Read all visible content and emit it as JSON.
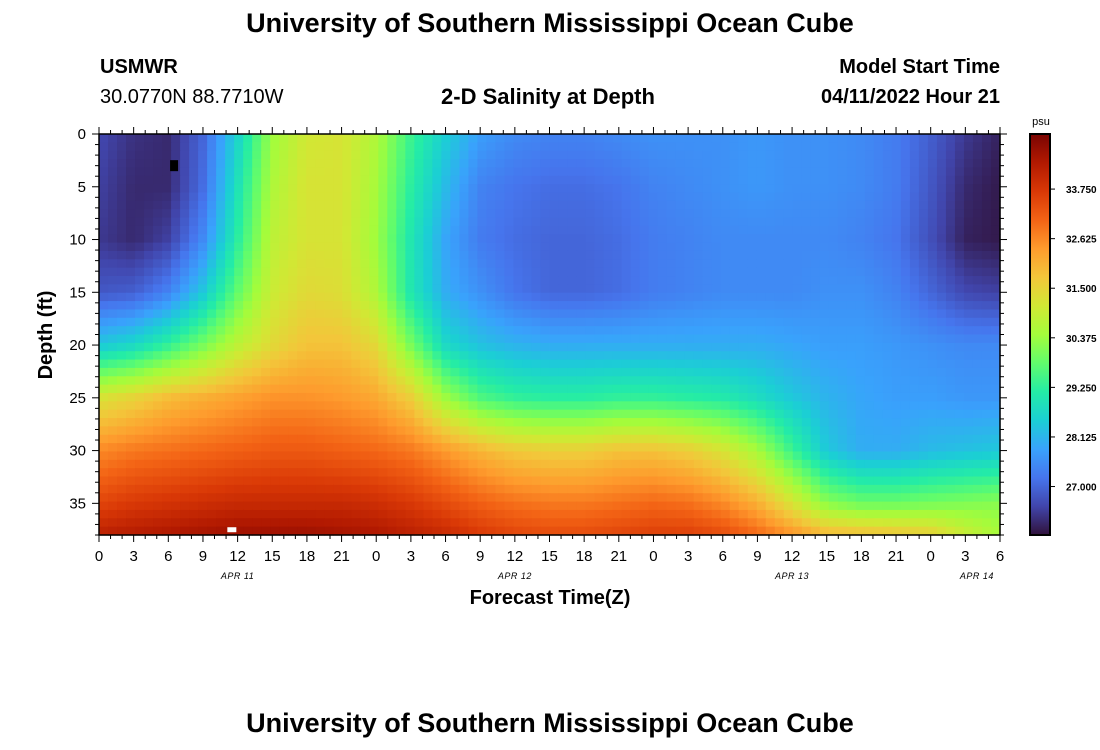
{
  "header": {
    "title": "University of Southern Mississippi Ocean Cube",
    "station": "USMWR",
    "coordinates": "30.0770N  88.7710W",
    "subtitle": "2-D Salinity at Depth",
    "model_start_label": "Model Start Time",
    "model_start_value": "04/11/2022 Hour 21"
  },
  "footer": {
    "title": "University of Southern Mississippi Ocean Cube"
  },
  "chart_data": {
    "type": "heatmap",
    "title": "2-D Salinity at Depth",
    "xlabel": "Forecast Time(Z)",
    "ylabel": "Depth (ft)",
    "x_tick_labels": [
      "0",
      "3",
      "6",
      "9",
      "12",
      "15",
      "18",
      "21",
      "0",
      "3",
      "6",
      "9",
      "12",
      "15",
      "18",
      "21",
      "0",
      "3",
      "6",
      "9",
      "12",
      "15",
      "18",
      "21",
      "0",
      "3",
      "6"
    ],
    "date_labels": [
      "APR 11",
      "APR 12",
      "APR 13",
      "APR 14"
    ],
    "xlim_hours": [
      0,
      78
    ],
    "ylim_ft": [
      0,
      38
    ],
    "y_ticks": [
      0,
      5,
      10,
      15,
      20,
      25,
      30,
      35
    ],
    "y_inverted": true,
    "colorbar": {
      "unit": "psu",
      "range": [
        25.9,
        35.0
      ],
      "tick_labels": [
        "33.750",
        "32.625",
        "31.500",
        "30.375",
        "29.250",
        "28.125",
        "27.000"
      ],
      "tick_values": [
        33.75,
        32.625,
        31.5,
        30.375,
        29.25,
        28.125,
        27.0
      ],
      "colormap": [
        "#30123b",
        "#4145ab",
        "#4675ed",
        "#39a2fc",
        "#1bcfd4",
        "#24eca6",
        "#61fc6c",
        "#a4fc3b",
        "#d1e834",
        "#f3c63a",
        "#fe9b2d",
        "#f36315",
        "#d93806",
        "#b11901",
        "#7a0402"
      ]
    },
    "salinity_psu": {
      "times_h": [
        0,
        3,
        6,
        9,
        12,
        15,
        18,
        21,
        24,
        27,
        30,
        33,
        36,
        39,
        42,
        45,
        48,
        51,
        54,
        57,
        60,
        63,
        66,
        69,
        72,
        75,
        78
      ],
      "depths_ft": [
        0,
        5,
        10,
        15,
        20,
        25,
        30,
        35,
        38
      ],
      "values": [
        [
          26.6,
          26.3,
          26.2,
          27.0,
          28.6,
          30.4,
          31.1,
          31.2,
          30.6,
          29.4,
          28.5,
          27.8,
          27.5,
          27.4,
          27.4,
          27.5,
          27.6,
          27.6,
          27.6,
          27.7,
          27.6,
          27.6,
          27.5,
          27.3,
          26.9,
          26.4,
          26.1
        ],
        [
          26.5,
          26.2,
          26.2,
          27.1,
          28.9,
          30.6,
          31.2,
          31.2,
          30.5,
          29.2,
          28.2,
          27.4,
          27.2,
          27.1,
          27.1,
          27.2,
          27.4,
          27.5,
          27.6,
          27.7,
          27.6,
          27.6,
          27.5,
          27.3,
          26.8,
          26.2,
          26.0
        ],
        [
          26.4,
          26.2,
          26.5,
          27.5,
          29.2,
          30.8,
          31.2,
          31.2,
          30.4,
          29.0,
          27.9,
          27.3,
          27.1,
          27.0,
          27.0,
          27.1,
          27.3,
          27.4,
          27.5,
          27.5,
          27.5,
          27.5,
          27.4,
          27.2,
          26.7,
          26.1,
          26.0
        ],
        [
          26.8,
          26.9,
          27.4,
          28.4,
          29.8,
          31.0,
          31.4,
          31.3,
          30.6,
          29.0,
          28.0,
          27.6,
          27.2,
          27.0,
          27.0,
          27.1,
          27.3,
          27.4,
          27.5,
          27.5,
          27.5,
          27.6,
          27.6,
          27.4,
          27.0,
          26.6,
          26.5
        ],
        [
          28.4,
          28.7,
          29.3,
          30.0,
          30.8,
          31.4,
          31.8,
          31.8,
          31.4,
          30.0,
          28.7,
          28.3,
          28.1,
          28.0,
          28.0,
          28.0,
          28.0,
          28.0,
          28.0,
          28.0,
          27.9,
          27.8,
          27.8,
          27.7,
          27.6,
          27.5,
          27.5
        ],
        [
          31.2,
          31.5,
          31.9,
          32.1,
          32.3,
          32.5,
          32.5,
          32.4,
          32.2,
          31.6,
          30.4,
          29.6,
          29.3,
          29.2,
          29.2,
          29.3,
          29.3,
          29.2,
          29.1,
          28.8,
          28.4,
          28.1,
          27.9,
          27.8,
          27.8,
          27.7,
          27.7
        ],
        [
          32.6,
          32.8,
          32.9,
          33.0,
          33.1,
          33.2,
          33.2,
          33.1,
          33.0,
          32.8,
          32.4,
          32.0,
          31.7,
          31.6,
          31.6,
          31.8,
          31.8,
          31.6,
          31.2,
          30.5,
          29.4,
          28.4,
          28.0,
          28.0,
          28.2,
          28.3,
          28.4
        ],
        [
          33.5,
          33.7,
          33.8,
          33.9,
          34.0,
          34.0,
          34.0,
          34.0,
          33.9,
          33.7,
          33.4,
          33.1,
          32.9,
          32.8,
          32.8,
          32.9,
          33.0,
          32.9,
          32.6,
          32.1,
          31.2,
          30.2,
          29.9,
          29.9,
          30.0,
          30.1,
          30.2
        ],
        [
          34.2,
          34.3,
          34.4,
          34.5,
          34.6,
          34.6,
          34.6,
          34.5,
          34.4,
          34.2,
          34.0,
          33.7,
          33.5,
          33.4,
          33.4,
          33.5,
          33.6,
          33.6,
          33.4,
          33.0,
          32.5,
          32.0,
          31.9,
          31.8,
          31.6,
          31.0,
          30.5
        ]
      ]
    },
    "markers": [
      {
        "type": "min",
        "color": "#000000",
        "time_h": 6.5,
        "depth_ft": 3
      },
      {
        "type": "max",
        "color": "#ffffff",
        "time_h": 11.5,
        "depth_ft": 37.5
      }
    ]
  }
}
